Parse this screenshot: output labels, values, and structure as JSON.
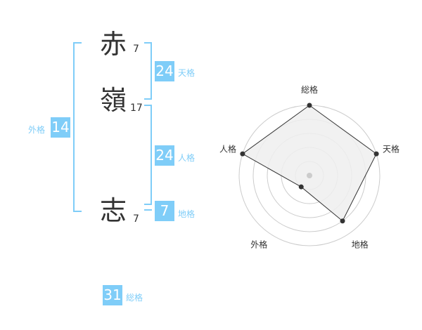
{
  "name": [
    {
      "char": "赤",
      "strokes": "7"
    },
    {
      "char": "嶺",
      "strokes": "17"
    },
    {
      "char": "志",
      "strokes": "7"
    }
  ],
  "kaku": {
    "tenkaku": {
      "label": "天格",
      "value": "24"
    },
    "jinkaku": {
      "label": "人格",
      "value": "24"
    },
    "chikaku": {
      "label": "地格",
      "value": "7"
    },
    "gaikaku": {
      "label": "外格",
      "value": "14"
    },
    "soukaku": {
      "label": "総格",
      "value": "31"
    }
  },
  "colors": {
    "accent": "#7fcdf8",
    "radar_fill": "#efefef",
    "radar_line": "#333333"
  },
  "chart_data": {
    "type": "radar",
    "axes": [
      "総格",
      "天格",
      "地格",
      "外格",
      "人格"
    ],
    "values": [
      5,
      5,
      4,
      1,
      5
    ],
    "max": 5,
    "rings": 5
  }
}
